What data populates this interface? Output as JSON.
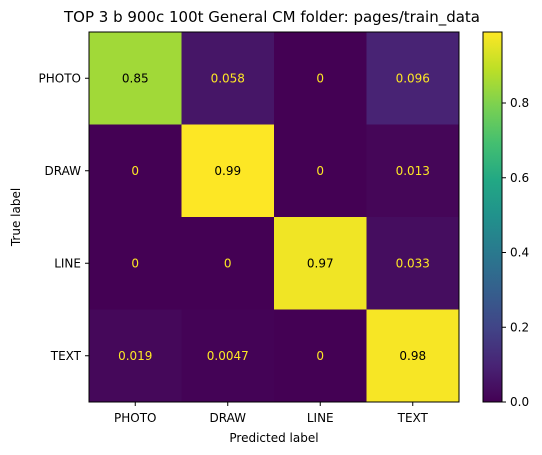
{
  "chart_data": {
    "type": "heatmap",
    "title": "TOP 3 b 900c 100t  General CM folder: pages/train_data",
    "xlabel": "Predicted label",
    "ylabel": "True label",
    "x_categories": [
      "PHOTO",
      "DRAW",
      "LINE",
      "TEXT"
    ],
    "y_categories": [
      "PHOTO",
      "DRAW",
      "LINE",
      "TEXT"
    ],
    "values": [
      [
        0.85,
        0.058,
        0,
        0.096
      ],
      [
        0,
        0.99,
        0,
        0.013
      ],
      [
        0,
        0,
        0.97,
        0.033
      ],
      [
        0.019,
        0.0047,
        0,
        0.98
      ]
    ],
    "value_labels": [
      [
        "0.85",
        "0.058",
        "0",
        "0.096"
      ],
      [
        "0",
        "0.99",
        "0",
        "0.013"
      ],
      [
        "0",
        "0",
        "0.97",
        "0.033"
      ],
      [
        "0.019",
        "0.0047",
        "0",
        "0.98"
      ]
    ],
    "colormap": "viridis",
    "colorbar": {
      "range": [
        0,
        0.99
      ],
      "ticks": [
        0.0,
        0.2,
        0.4,
        0.6,
        0.8
      ],
      "tick_labels": [
        "0.0",
        "0.2",
        "0.4",
        "0.6",
        "0.8"
      ]
    },
    "text_colors": {
      "dark_cell": "#fde725",
      "light_cell": "#000000"
    }
  }
}
